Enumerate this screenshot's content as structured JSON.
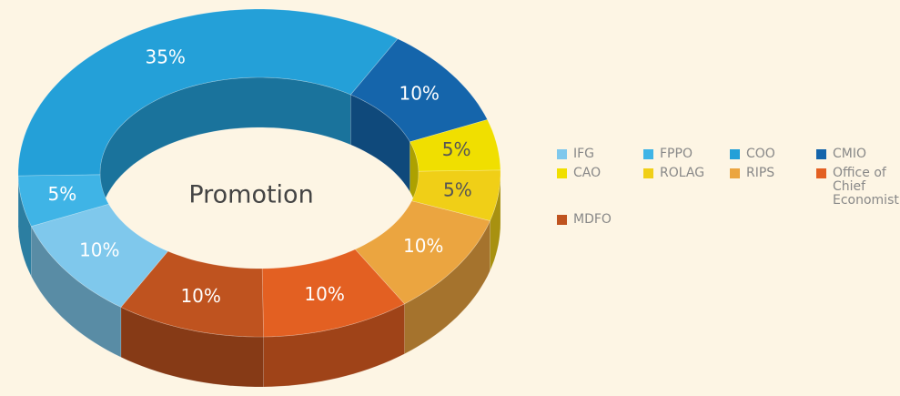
{
  "chart_data": {
    "type": "donut3d",
    "title": "Promotion",
    "categories": [
      "IFG",
      "FPPO",
      "COO",
      "CMIO",
      "CAO",
      "ROLAG",
      "RIPS",
      "Office of Chief Economist",
      "MDFO"
    ],
    "values": [
      10,
      5,
      35,
      10,
      5,
      5,
      10,
      10,
      10
    ],
    "value_labels": [
      "10%",
      "5%",
      "35%",
      "10%",
      "5%",
      "5%",
      "10%",
      "10%",
      "10%"
    ],
    "colors": [
      "#7fc8ec",
      "#3fb4e6",
      "#24a0d8",
      "#1565ab",
      "#f0df00",
      "#f0cf17",
      "#eba540",
      "#e36022",
      "#bf531f"
    ],
    "legend": "right"
  }
}
